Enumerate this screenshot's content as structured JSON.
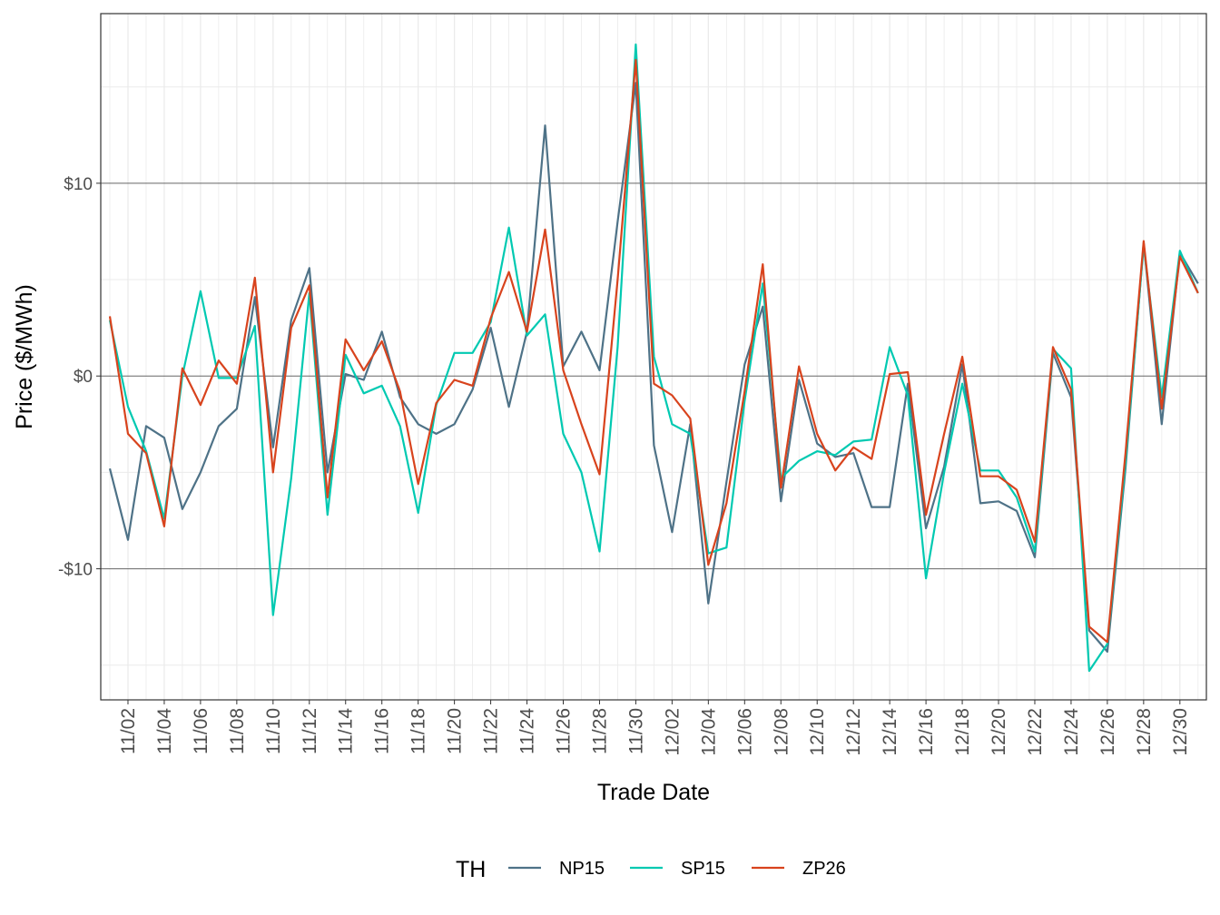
{
  "chart_data": {
    "type": "line",
    "title": "",
    "xlabel": "Trade Date",
    "ylabel": "Price ($/MWh)",
    "ylim": [
      -16.8,
      18.8
    ],
    "y_ticks": [
      {
        "value": -10,
        "label": "-$10"
      },
      {
        "value": 0,
        "label": "$0"
      },
      {
        "value": 10,
        "label": "$10"
      }
    ],
    "grid": true,
    "legend": {
      "title": "TH",
      "position": "bottom"
    },
    "x": [
      "11/01",
      "11/02",
      "11/03",
      "11/04",
      "11/05",
      "11/06",
      "11/07",
      "11/08",
      "11/09",
      "11/10",
      "11/11",
      "11/12",
      "11/13",
      "11/14",
      "11/15",
      "11/16",
      "11/17",
      "11/18",
      "11/19",
      "11/20",
      "11/21",
      "11/22",
      "11/23",
      "11/24",
      "11/25",
      "11/26",
      "11/27",
      "11/28",
      "11/29",
      "11/30",
      "12/01",
      "12/02",
      "12/03",
      "12/04",
      "12/05",
      "12/06",
      "12/07",
      "12/08",
      "12/09",
      "12/10",
      "12/11",
      "12/12",
      "12/13",
      "12/14",
      "12/15",
      "12/16",
      "12/17",
      "12/18",
      "12/19",
      "12/20",
      "12/21",
      "12/22",
      "12/23",
      "12/24",
      "12/25",
      "12/26",
      "12/27",
      "12/28",
      "12/29",
      "12/30",
      "12/31"
    ],
    "x_tick_labels": [
      "11/02",
      "11/04",
      "11/06",
      "11/08",
      "11/10",
      "11/12",
      "11/14",
      "11/16",
      "11/18",
      "11/20",
      "11/22",
      "11/24",
      "11/26",
      "11/28",
      "11/30",
      "12/02",
      "12/04",
      "12/06",
      "12/08",
      "12/10",
      "12/12",
      "12/14",
      "12/16",
      "12/18",
      "12/20",
      "12/22",
      "12/24",
      "12/26",
      "12/28",
      "12/30"
    ],
    "series": [
      {
        "name": "NP15",
        "color": "#4e7287",
        "values": [
          -4.8,
          -8.5,
          -2.6,
          -3.2,
          -6.9,
          -5.0,
          -2.6,
          -1.7,
          4.1,
          -3.7,
          2.9,
          5.6,
          -5.0,
          0.1,
          -0.2,
          2.3,
          -1.1,
          -2.5,
          -3.0,
          -2.5,
          -0.7,
          2.5,
          -1.6,
          2.3,
          13.0,
          0.5,
          2.3,
          0.3,
          8.0,
          15.2,
          -3.6,
          -8.1,
          -2.5,
          -11.8,
          -5.5,
          0.6,
          3.6,
          -6.5,
          -0.2,
          -3.5,
          -4.2,
          -4.0,
          -6.8,
          -6.8,
          -0.4,
          -7.9,
          -4.7,
          0.6,
          -6.6,
          -6.5,
          -7.0,
          -9.4,
          1.2,
          -1.1,
          -13.2,
          -14.3,
          -4.8,
          6.9,
          -2.5,
          6.4,
          4.8
        ]
      },
      {
        "name": "SP15",
        "color": "#00c9b1",
        "values": [
          2.9,
          -1.6,
          -3.9,
          -7.4,
          0.0,
          4.4,
          -0.1,
          -0.1,
          2.6,
          -12.4,
          -5.3,
          4.3,
          -7.2,
          1.1,
          -0.9,
          -0.5,
          -2.6,
          -7.1,
          -1.5,
          1.2,
          1.2,
          2.8,
          7.7,
          2.1,
          3.2,
          -3.0,
          -5.0,
          -9.1,
          1.5,
          17.2,
          1.0,
          -2.5,
          -3.0,
          -9.2,
          -8.9,
          -1.3,
          4.8,
          -5.3,
          -4.4,
          -3.9,
          -4.1,
          -3.4,
          -3.3,
          1.5,
          -1.0,
          -10.5,
          -5.0,
          -0.4,
          -4.9,
          -4.9,
          -6.3,
          -9.1,
          1.4,
          0.4,
          -15.3,
          -13.9,
          -4.5,
          6.8,
          -1.1,
          6.5,
          4.3
        ]
      },
      {
        "name": "ZP26",
        "color": "#d8431d",
        "values": [
          3.1,
          -3.0,
          -4.0,
          -7.8,
          0.4,
          -1.5,
          0.8,
          -0.4,
          5.1,
          -5.0,
          2.5,
          4.7,
          -6.3,
          1.9,
          0.3,
          1.8,
          -0.8,
          -5.6,
          -1.4,
          -0.2,
          -0.5,
          3.0,
          5.4,
          2.3,
          7.6,
          0.3,
          -2.5,
          -5.1,
          5.0,
          16.4,
          -0.4,
          -1.0,
          -2.2,
          -9.8,
          -6.6,
          -0.8,
          5.8,
          -5.8,
          0.5,
          -3.0,
          -4.9,
          -3.7,
          -4.3,
          0.1,
          0.2,
          -7.2,
          -3.0,
          1.0,
          -5.2,
          -5.2,
          -5.9,
          -8.6,
          1.5,
          -0.7,
          -13.0,
          -13.8,
          -4.0,
          7.0,
          -1.7,
          6.2,
          4.3
        ]
      }
    ]
  }
}
